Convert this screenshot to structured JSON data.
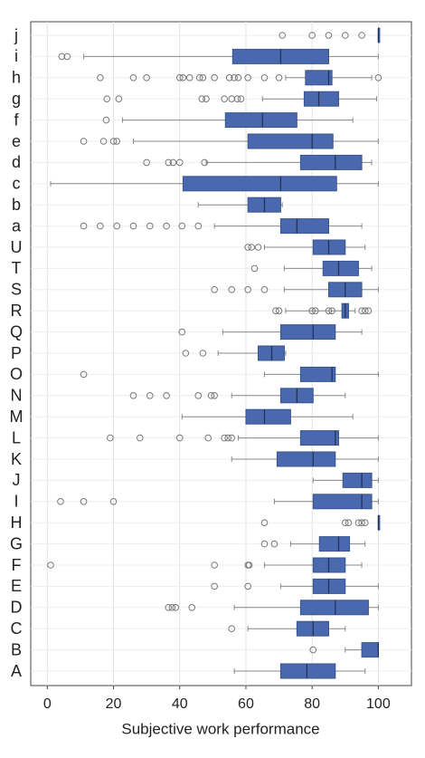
{
  "chart_data": {
    "type": "boxplot",
    "xlabel": "Subjective work performance",
    "categories": [
      "A",
      "B",
      "C",
      "D",
      "E",
      "F",
      "G",
      "H",
      "I",
      "J",
      "K",
      "L",
      "M",
      "N",
      "O",
      "P",
      "Q",
      "R",
      "S",
      "T",
      "U",
      "a",
      "b",
      "c",
      "d",
      "e",
      "f",
      "g",
      "h",
      "i",
      "j"
    ],
    "boxes": [
      {
        "low": 56.5,
        "q1": 70.5,
        "median": 78.4,
        "q3": 87,
        "high": 96,
        "outliers": []
      },
      {
        "low": 90,
        "q1": 95,
        "median": 100,
        "q3": 100,
        "high": 100,
        "outliers": [
          80.3
        ]
      },
      {
        "low": 60.6,
        "q1": 75.4,
        "median": 80.3,
        "q3": 85,
        "high": 90,
        "outliers": [
          55.7
        ]
      },
      {
        "low": 56.5,
        "q1": 76.5,
        "median": 87,
        "q3": 97,
        "high": 100,
        "outliers": [
          36.6,
          37.7,
          38.8,
          43.7
        ]
      },
      {
        "low": 70.5,
        "q1": 80.3,
        "median": 85,
        "q3": 90,
        "high": 100,
        "outliers": [
          50.5,
          60.6
        ]
      },
      {
        "low": 65.6,
        "q1": 80.3,
        "median": 85,
        "q3": 90,
        "high": 95,
        "outliers": [
          1,
          50.5,
          60.6,
          61
        ]
      },
      {
        "low": 73.5,
        "q1": 82.2,
        "median": 88,
        "q3": 91.3,
        "high": 96,
        "outliers": [
          65.6,
          68.6
        ]
      },
      {
        "low": 100,
        "q1": 100,
        "median": 100,
        "q3": 100,
        "high": 100,
        "outliers": [
          65.6,
          90,
          91,
          94,
          95,
          96
        ]
      },
      {
        "low": 68.6,
        "q1": 80.3,
        "median": 95,
        "q3": 98,
        "high": 100,
        "outliers": [
          4,
          11,
          20
        ]
      },
      {
        "low": 80.3,
        "q1": 89.3,
        "median": 95,
        "q3": 98,
        "high": 100,
        "outliers": []
      },
      {
        "low": 55.7,
        "q1": 69.4,
        "median": 80.3,
        "q3": 87,
        "high": 100,
        "outliers": []
      },
      {
        "low": 57.7,
        "q1": 76.5,
        "median": 87,
        "q3": 88,
        "high": 100,
        "outliers": [
          19,
          28,
          40,
          48.6,
          53.5,
          54.6,
          55.7
        ]
      },
      {
        "low": 40.7,
        "q1": 60,
        "median": 65.6,
        "q3": 73.5,
        "high": 92.3,
        "outliers": []
      },
      {
        "low": 55.7,
        "q1": 70.5,
        "median": 75.4,
        "q3": 80.3,
        "high": 90,
        "outliers": [
          26,
          31,
          36,
          45.6,
          49.5,
          50.5
        ]
      },
      {
        "low": 65.6,
        "q1": 76.5,
        "median": 86,
        "q3": 87,
        "high": 100,
        "outliers": [
          11
        ]
      },
      {
        "low": 51.6,
        "q1": 63.7,
        "median": 67.8,
        "q3": 71.6,
        "high": 72,
        "outliers": [
          41.8,
          47
        ]
      },
      {
        "low": 53,
        "q1": 70.5,
        "median": 80.3,
        "q3": 87,
        "high": 95,
        "outliers": [
          40.7
        ]
      },
      {
        "low": 72,
        "q1": 89,
        "median": 90,
        "q3": 91,
        "high": 93,
        "outliers": [
          69,
          70,
          80,
          81,
          85,
          86,
          95,
          96,
          97
        ]
      },
      {
        "low": 71.6,
        "q1": 85,
        "median": 90,
        "q3": 95,
        "high": 100,
        "outliers": [
          50.5,
          55.7,
          60.6,
          65.6
        ]
      },
      {
        "low": 71.6,
        "q1": 83.3,
        "median": 88,
        "q3": 94,
        "high": 98,
        "outliers": [
          62.6
        ]
      },
      {
        "low": 65.6,
        "q1": 80.3,
        "median": 85,
        "q3": 90,
        "high": 96,
        "outliers": [
          60.6,
          61.7,
          63.7
        ]
      },
      {
        "low": 50.5,
        "q1": 70.5,
        "median": 75.4,
        "q3": 85,
        "high": 95,
        "outliers": [
          11,
          16,
          21,
          26,
          31,
          36,
          40.7,
          45.6
        ]
      },
      {
        "low": 45.6,
        "q1": 60.6,
        "median": 65.6,
        "q3": 70.5,
        "high": 71,
        "outliers": []
      },
      {
        "low": 1,
        "q1": 41,
        "median": 70.5,
        "q3": 87.4,
        "high": 100,
        "outliers": []
      },
      {
        "low": 48,
        "q1": 76.5,
        "median": 87,
        "q3": 95,
        "high": 98,
        "outliers": [
          30,
          36.6,
          38,
          40,
          47.5
        ]
      },
      {
        "low": 26,
        "q1": 60.6,
        "median": 80,
        "q3": 86.3,
        "high": 100,
        "outliers": [
          11,
          17,
          20,
          21
        ]
      },
      {
        "low": 22.7,
        "q1": 53.8,
        "median": 65,
        "q3": 75.4,
        "high": 92.3,
        "outliers": [
          17.8
        ]
      },
      {
        "low": 65,
        "q1": 77.6,
        "median": 82,
        "q3": 88,
        "high": 99.5,
        "outliers": [
          18,
          21.6,
          46.7,
          48,
          53.5,
          55.7,
          57.4,
          58.5
        ]
      },
      {
        "low": 72,
        "q1": 78,
        "median": 85,
        "q3": 86,
        "high": 98,
        "outliers": [
          16,
          26,
          30,
          40,
          41,
          43,
          46,
          47,
          50.5,
          55,
          56.5,
          57.7,
          60.6,
          65.6,
          70,
          100
        ]
      },
      {
        "low": 11,
        "q1": 56,
        "median": 70.5,
        "q3": 85,
        "high": 100,
        "outliers": [
          4.4,
          6
        ]
      },
      {
        "low": 100,
        "q1": 100,
        "median": 100,
        "q3": 100,
        "high": 100,
        "outliers": [
          71,
          80,
          85,
          90,
          95
        ]
      }
    ],
    "color": "#4a68ad",
    "xlim": [
      -5,
      110
    ],
    "xticks": [
      0,
      20,
      40,
      60,
      80,
      100
    ],
    "grid": true
  }
}
